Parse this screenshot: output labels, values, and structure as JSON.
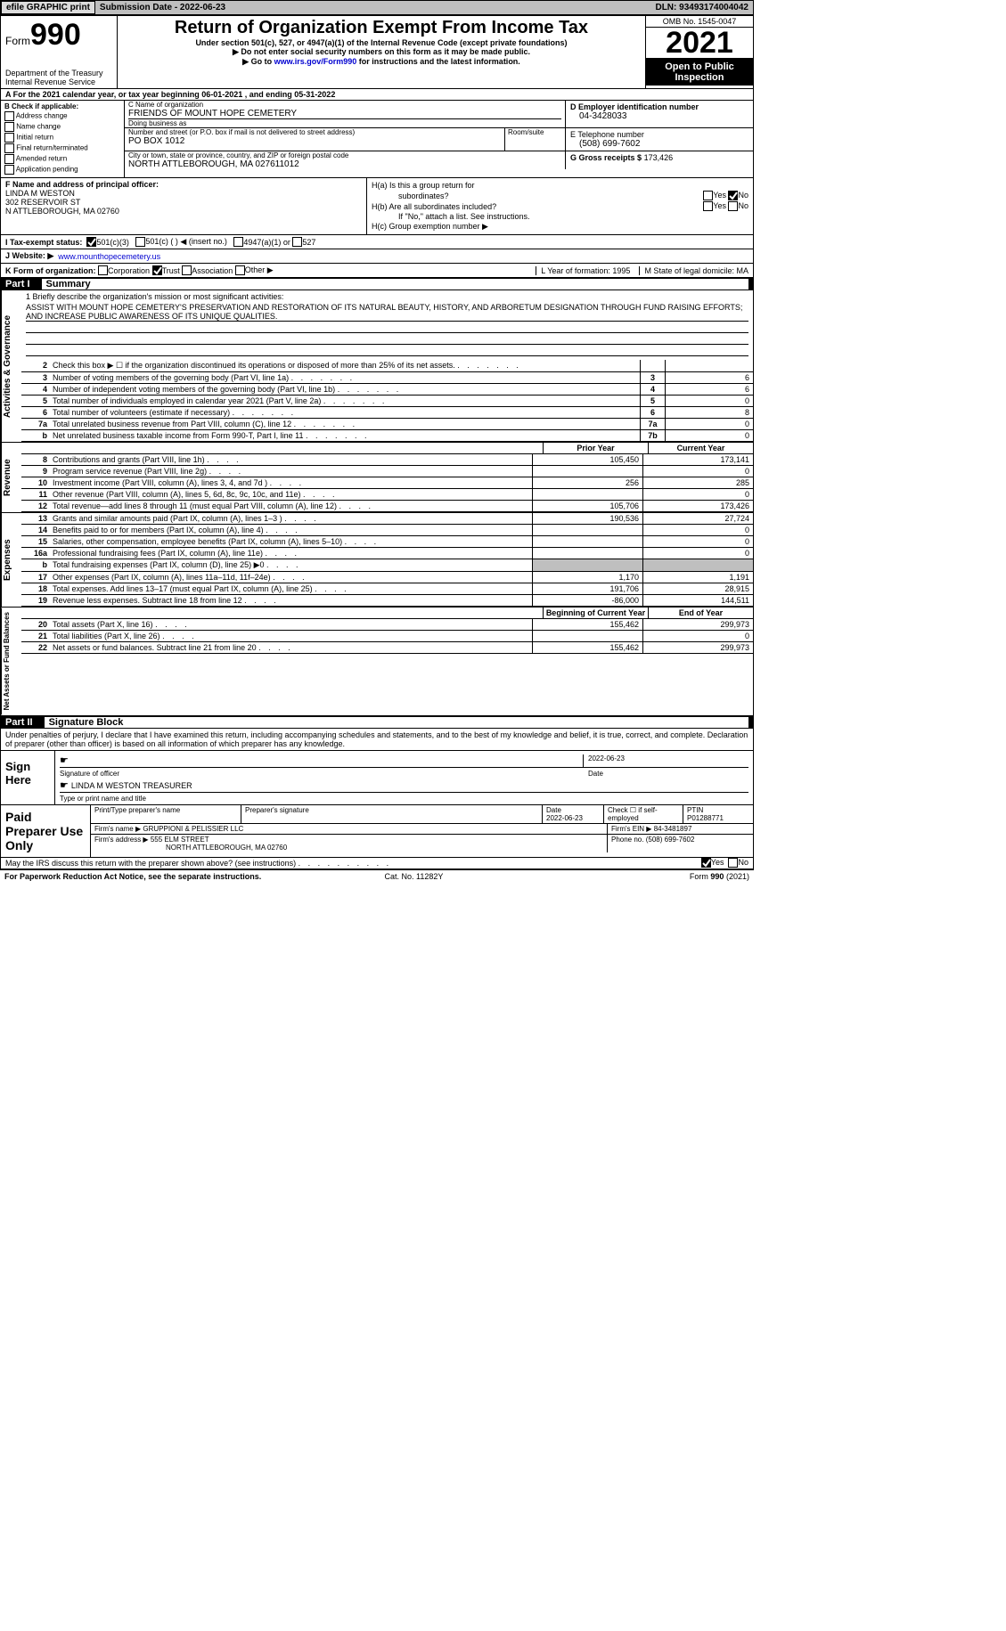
{
  "header": {
    "efile": "efile GRAPHIC print",
    "submission": "Submission Date - 2022-06-23",
    "dln": "DLN: 93493174004042"
  },
  "title_block": {
    "form_word": "Form",
    "form_num": "990",
    "dept": "Department of the Treasury",
    "irs": "Internal Revenue Service",
    "title": "Return of Organization Exempt From Income Tax",
    "sub1": "Under section 501(c), 527, or 4947(a)(1) of the Internal Revenue Code (except private foundations)",
    "sub2": "▶ Do not enter social security numbers on this form as it may be made public.",
    "sub3_pre": "▶ Go to ",
    "sub3_link": "www.irs.gov/Form990",
    "sub3_post": " for instructions and the latest information.",
    "omb": "OMB No. 1545-0047",
    "year": "2021",
    "open": "Open to Public Inspection"
  },
  "row_a": "A For the 2021 calendar year, or tax year beginning 06-01-2021    , and ending 05-31-2022",
  "section_b": {
    "label": "B Check if applicable:",
    "items": [
      "Address change",
      "Name change",
      "Initial return",
      "Final return/terminated",
      "Amended return",
      "Application pending"
    ]
  },
  "section_c": {
    "name_lbl": "C Name of organization",
    "name": "FRIENDS OF MOUNT HOPE CEMETERY",
    "dba_lbl": "Doing business as",
    "dba": "",
    "addr_lbl": "Number and street (or P.O. box if mail is not delivered to street address)",
    "room_lbl": "Room/suite",
    "addr": "PO BOX 1012",
    "city_lbl": "City or town, state or province, country, and ZIP or foreign postal code",
    "city": "NORTH ATTLEBOROUGH, MA  027611012"
  },
  "section_d": {
    "lbl": "D Employer identification number",
    "val": "04-3428033"
  },
  "section_e": {
    "lbl": "E Telephone number",
    "val": "(508) 699-7602"
  },
  "section_g": {
    "lbl": "G Gross receipts $",
    "val": "173,426"
  },
  "section_f": {
    "lbl": "F Name and address of principal officer:",
    "name": "LINDA M WESTON",
    "addr1": "302 RESERVOIR ST",
    "addr2": "N ATTLEBOROUGH, MA  02760"
  },
  "section_h": {
    "ha": "H(a)  Is this a group return for",
    "ha2": "subordinates?",
    "hb": "H(b)  Are all subordinates included?",
    "hb_note": "If \"No,\" attach a list. See instructions.",
    "hc": "H(c)  Group exemption number ▶",
    "yes": "Yes",
    "no": "No"
  },
  "section_i": {
    "lbl": "I   Tax-exempt status:",
    "opts": [
      "501(c)(3)",
      "501(c) (  ) ◀ (insert no.)",
      "4947(a)(1) or",
      "527"
    ]
  },
  "section_j": {
    "lbl": "J   Website: ▶",
    "val": "www.mounthopecemetery.us"
  },
  "section_k": {
    "lbl": "K Form of organization:",
    "opts": [
      "Corporation",
      "Trust",
      "Association",
      "Other ▶"
    ],
    "l": "L Year of formation: 1995",
    "m": "M State of legal domicile: MA"
  },
  "part1": {
    "num": "Part I",
    "title": "Summary"
  },
  "mission": {
    "lbl": "1   Briefly describe the organization's mission or most significant activities:",
    "text": "ASSIST WITH MOUNT HOPE CEMETERY'S PRESERVATION AND RESTORATION OF ITS NATURAL BEAUTY, HISTORY, AND ARBORETUM DESIGNATION THROUGH FUND RAISING EFFORTS; AND INCREASE PUBLIC AWARENESS OF ITS UNIQUE QUALITIES."
  },
  "activities_lines": [
    {
      "n": "2",
      "t": "Check this box ▶ ☐ if the organization discontinued its operations or disposed of more than 25% of its net assets.",
      "box": "",
      "v": ""
    },
    {
      "n": "3",
      "t": "Number of voting members of the governing body (Part VI, line 1a)",
      "box": "3",
      "v": "6"
    },
    {
      "n": "4",
      "t": "Number of independent voting members of the governing body (Part VI, line 1b)",
      "box": "4",
      "v": "6"
    },
    {
      "n": "5",
      "t": "Total number of individuals employed in calendar year 2021 (Part V, line 2a)",
      "box": "5",
      "v": "0"
    },
    {
      "n": "6",
      "t": "Total number of volunteers (estimate if necessary)",
      "box": "6",
      "v": "8"
    },
    {
      "n": "7a",
      "t": "Total unrelated business revenue from Part VIII, column (C), line 12",
      "box": "7a",
      "v": "0"
    },
    {
      "n": "b",
      "t": "Net unrelated business taxable income from Form 990-T, Part I, line 11",
      "box": "7b",
      "v": "0"
    }
  ],
  "col_headers": {
    "prior": "Prior Year",
    "current": "Current Year",
    "boy": "Beginning of Current Year",
    "eoy": "End of Year"
  },
  "revenue_lines": [
    {
      "n": "8",
      "t": "Contributions and grants (Part VIII, line 1h)",
      "py": "105,450",
      "cy": "173,141"
    },
    {
      "n": "9",
      "t": "Program service revenue (Part VIII, line 2g)",
      "py": "",
      "cy": "0"
    },
    {
      "n": "10",
      "t": "Investment income (Part VIII, column (A), lines 3, 4, and 7d )",
      "py": "256",
      "cy": "285"
    },
    {
      "n": "11",
      "t": "Other revenue (Part VIII, column (A), lines 5, 6d, 8c, 9c, 10c, and 11e)",
      "py": "",
      "cy": "0"
    },
    {
      "n": "12",
      "t": "Total revenue—add lines 8 through 11 (must equal Part VIII, column (A), line 12)",
      "py": "105,706",
      "cy": "173,426"
    }
  ],
  "expense_lines": [
    {
      "n": "13",
      "t": "Grants and similar amounts paid (Part IX, column (A), lines 1–3 )",
      "py": "190,536",
      "cy": "27,724"
    },
    {
      "n": "14",
      "t": "Benefits paid to or for members (Part IX, column (A), line 4)",
      "py": "",
      "cy": "0"
    },
    {
      "n": "15",
      "t": "Salaries, other compensation, employee benefits (Part IX, column (A), lines 5–10)",
      "py": "",
      "cy": "0"
    },
    {
      "n": "16a",
      "t": "Professional fundraising fees (Part IX, column (A), line 11e)",
      "py": "",
      "cy": "0"
    },
    {
      "n": "b",
      "t": "Total fundraising expenses (Part IX, column (D), line 25) ▶0",
      "py": "shade",
      "cy": "shade"
    },
    {
      "n": "17",
      "t": "Other expenses (Part IX, column (A), lines 11a–11d, 11f–24e)",
      "py": "1,170",
      "cy": "1,191"
    },
    {
      "n": "18",
      "t": "Total expenses. Add lines 13–17 (must equal Part IX, column (A), line 25)",
      "py": "191,706",
      "cy": "28,915"
    },
    {
      "n": "19",
      "t": "Revenue less expenses. Subtract line 18 from line 12",
      "py": "-86,000",
      "cy": "144,511"
    }
  ],
  "netassets_lines": [
    {
      "n": "20",
      "t": "Total assets (Part X, line 16)",
      "py": "155,462",
      "cy": "299,973"
    },
    {
      "n": "21",
      "t": "Total liabilities (Part X, line 26)",
      "py": "",
      "cy": "0"
    },
    {
      "n": "22",
      "t": "Net assets or fund balances. Subtract line 21 from line 20",
      "py": "155,462",
      "cy": "299,973"
    }
  ],
  "vert_labels": {
    "act": "Activities & Governance",
    "rev": "Revenue",
    "exp": "Expenses",
    "na": "Net Assets or Fund Balances"
  },
  "part2": {
    "num": "Part II",
    "title": "Signature Block"
  },
  "sig_declare": "Under penalties of perjury, I declare that I have examined this return, including accompanying schedules and statements, and to the best of my knowledge and belief, it is true, correct, and complete. Declaration of preparer (other than officer) is based on all information of which preparer has any knowledge.",
  "sign_here": {
    "lbl": "Sign Here",
    "sig_lbl": "Signature of officer",
    "date": "2022-06-23",
    "date_lbl": "Date",
    "name": "LINDA M WESTON  TREASURER",
    "name_lbl": "Type or print name and title"
  },
  "paid_prep": {
    "lbl": "Paid Preparer Use Only",
    "r1": {
      "c1": "Print/Type preparer's name",
      "c2": "Preparer's signature",
      "c3": "Date",
      "c3v": "2022-06-23",
      "c4": "Check ☐ if self-employed",
      "c5": "PTIN",
      "c5v": "P01288771"
    },
    "r2": {
      "lbl": "Firm's name    ▶",
      "val": "GRUPPIONI & PELISSIER LLC",
      "ein_lbl": "Firm's EIN ▶",
      "ein": "84-3481897"
    },
    "r3": {
      "lbl": "Firm's address ▶",
      "val1": "555 ELM STREET",
      "val2": "NORTH ATTLEBOROUGH, MA  02760",
      "ph_lbl": "Phone no.",
      "ph": "(508) 699-7602"
    }
  },
  "discuss": "May the IRS discuss this return with the preparer shown above? (see instructions)",
  "footer": {
    "l": "For Paperwork Reduction Act Notice, see the separate instructions.",
    "c": "Cat. No. 11282Y",
    "r": "Form 990 (2021)"
  }
}
